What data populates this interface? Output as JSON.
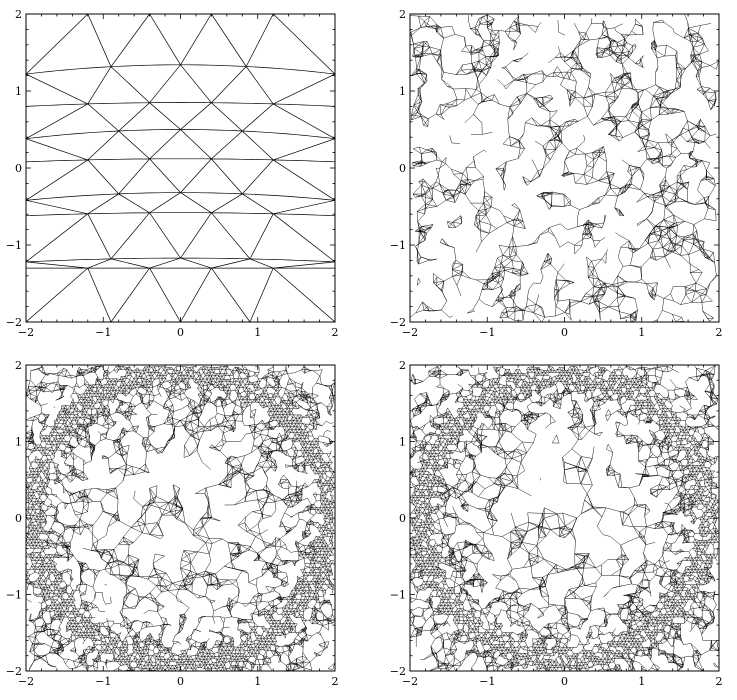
{
  "figure": {
    "panels": [
      {
        "id": "top-left",
        "mesh": "coarse",
        "x_ticks": [
          "−2",
          "−1",
          "0",
          "1",
          "2"
        ],
        "y_ticks": [
          "2",
          "1",
          "0",
          "−1",
          "−2"
        ]
      },
      {
        "id": "top-right",
        "mesh": "fine-adaptive",
        "x_ticks": [
          "−2",
          "−1",
          "0",
          "1",
          "2"
        ],
        "y_ticks": [
          "2",
          "1",
          "0",
          "−1",
          "−2"
        ]
      },
      {
        "id": "bottom-left",
        "mesh": "ring-refined",
        "x_ticks": [
          "−2",
          "−1",
          "0",
          "1",
          "2"
        ],
        "y_ticks": [
          "2",
          "1",
          "0",
          "−1",
          "−2"
        ]
      },
      {
        "id": "bottom-right",
        "mesh": "ring-refined",
        "x_ticks": [
          "−2",
          "−1",
          "0",
          "1",
          "2"
        ],
        "y_ticks": [
          "2",
          "1",
          "0",
          "−1",
          "−2"
        ]
      }
    ],
    "axis_range": {
      "x": [
        -2,
        2
      ],
      "y": [
        -2,
        2
      ]
    },
    "grid": false
  }
}
